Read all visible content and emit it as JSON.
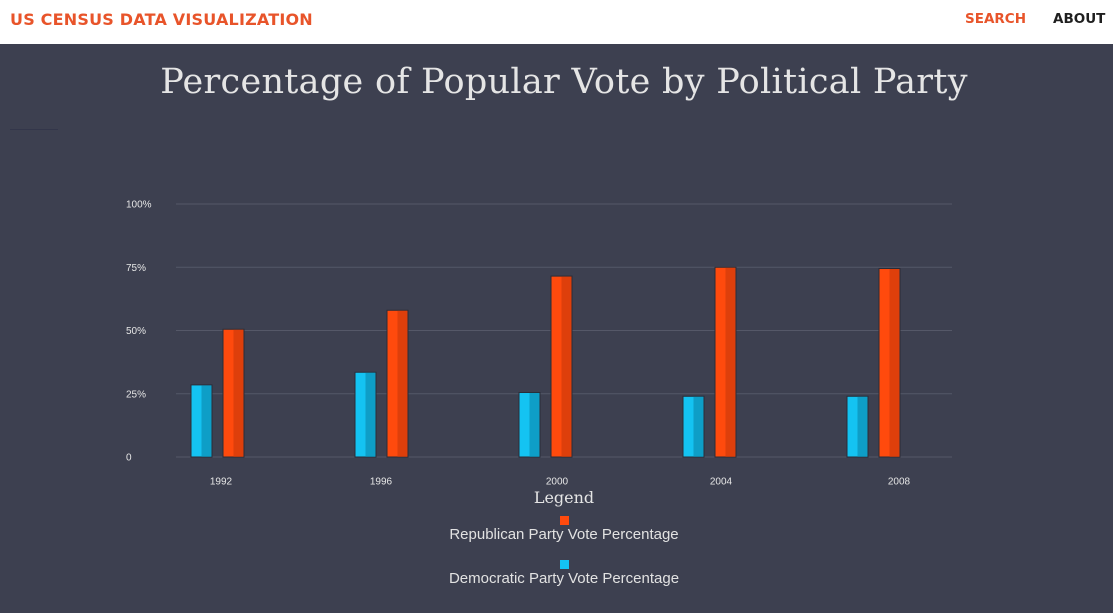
{
  "header": {
    "brand": "US CENSUS DATA VISUALIZATION",
    "nav": [
      {
        "label": "SEARCH",
        "color": "#e8542a"
      },
      {
        "label": "ABOUT",
        "color": "#1f1f1f"
      }
    ]
  },
  "colors": {
    "background": "#3d4050",
    "gridline": "#555868",
    "republican": "#ff4a0d",
    "republican_dark": "#c8380a",
    "democratic": "#14c3f2",
    "democratic_dark": "#0a86aa"
  },
  "chart_data": {
    "type": "bar",
    "title": "Percentage of Popular Vote by Political Party",
    "categories": [
      "1992",
      "1996",
      "2000",
      "2004",
      "2008"
    ],
    "series": [
      {
        "name": "Democratic Party Vote Percentage",
        "values": [
          28.5,
          33.5,
          25.5,
          24,
          24
        ]
      },
      {
        "name": "Republican Party Vote Percentage",
        "values": [
          50.5,
          58,
          71.5,
          75,
          74.5
        ]
      }
    ],
    "ylim": [
      0,
      100
    ],
    "yticks": [
      0,
      25,
      50,
      75,
      100
    ],
    "ytick_labels": [
      "0",
      "25%",
      "50%",
      "75%",
      "100%"
    ],
    "grid": true,
    "legend": {
      "title": "Legend",
      "placement": "bottom-center",
      "entries": [
        "Republican Party Vote Percentage",
        "Democratic Party Vote Percentage"
      ]
    }
  }
}
